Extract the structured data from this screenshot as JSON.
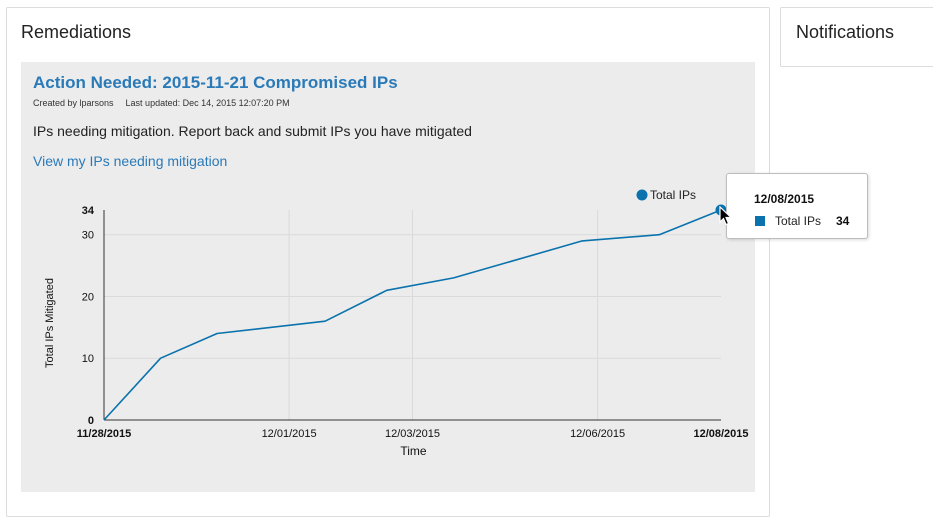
{
  "remediations": {
    "title": "Remediations",
    "card": {
      "title": "Action Needed: 2015-11-21 Compromised IPs",
      "created_by": "Created by lparsons",
      "last_updated": "Last updated: Dec 14, 2015 12:07:20 PM",
      "description": "IPs needing mitigation. Report back and submit IPs you have mitigated",
      "link_label": "View my IPs needing mitigation"
    }
  },
  "notifications": {
    "title": "Notifications"
  },
  "tooltip": {
    "date": "12/08/2015",
    "series_label": "Total IPs",
    "value": "34"
  },
  "colors": {
    "link": "#2a7ab8",
    "series": "#0a72ad",
    "card_bg": "#ececec"
  },
  "chart_data": {
    "type": "line",
    "title": "",
    "xlabel": "Time",
    "ylabel": "Total IPs Mitigated",
    "legend": {
      "position": "top-right",
      "entries": [
        "Total IPs"
      ]
    },
    "x_range": [
      "11/28/2015",
      "12/08/2015"
    ],
    "ylim": [
      0,
      34
    ],
    "y_ticks": [
      {
        "value": 0,
        "label": "0",
        "bold": true
      },
      {
        "value": 10,
        "label": "10",
        "bold": false
      },
      {
        "value": 20,
        "label": "20",
        "bold": false
      },
      {
        "value": 30,
        "label": "30",
        "bold": false
      },
      {
        "value": 34,
        "label": "34",
        "bold": true
      }
    ],
    "x_ticks": [
      {
        "date": "11/28/2015",
        "label": "11/28/2015",
        "bold": true
      },
      {
        "date": "12/01/2015",
        "label": "12/01/2015",
        "bold": false
      },
      {
        "date": "12/03/2015",
        "label": "12/03/2015",
        "bold": false
      },
      {
        "date": "12/06/2015",
        "label": "12/06/2015",
        "bold": false
      },
      {
        "date": "12/08/2015",
        "label": "12/08/2015",
        "bold": true
      }
    ],
    "grid": true,
    "series": [
      {
        "name": "Total IPs",
        "color": "#0a72ad",
        "points": [
          {
            "x": "11/28/2015 00:00",
            "y": 0
          },
          {
            "x": "11/28/2015 22:00",
            "y": 10
          },
          {
            "x": "11/29/2015 20:00",
            "y": 14
          },
          {
            "x": "12/01/2015 14:00",
            "y": 16
          },
          {
            "x": "12/02/2015 14:00",
            "y": 21
          },
          {
            "x": "12/03/2015 16:00",
            "y": 23
          },
          {
            "x": "12/05/2015 18:00",
            "y": 29
          },
          {
            "x": "12/07/2015 00:00",
            "y": 30
          },
          {
            "x": "12/08/2015 00:00",
            "y": 34
          }
        ]
      }
    ],
    "highlight": {
      "x": "12/08/2015 00:00",
      "y": 34
    }
  }
}
